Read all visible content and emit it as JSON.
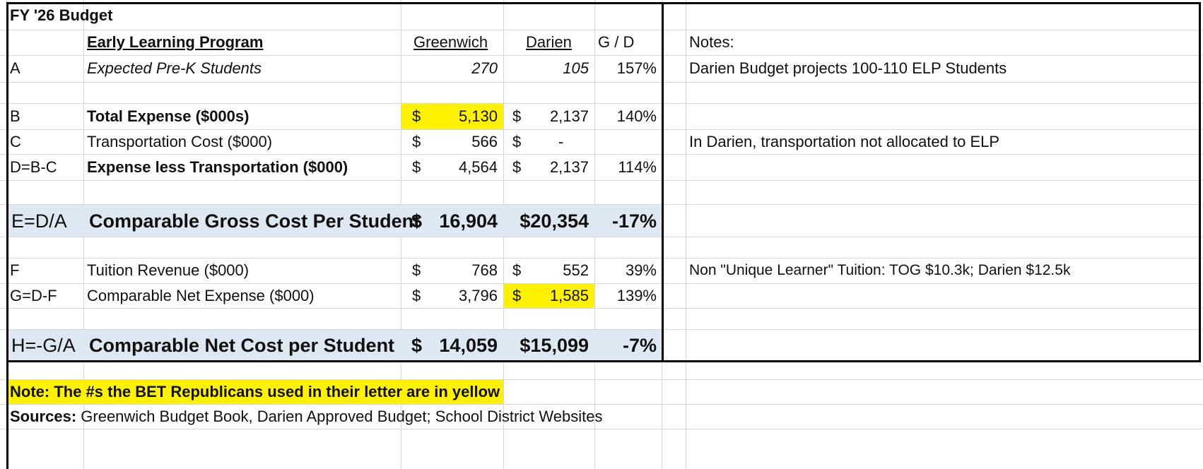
{
  "title": "FY '26 Budget",
  "header": {
    "program": "Early Learning Program",
    "greenwich": "Greenwich",
    "darien": "Darien",
    "ratio": "G / D",
    "notes": "Notes:"
  },
  "rows": {
    "a": {
      "code": "A",
      "label": "Expected Pre-K Students",
      "greenwich": "270",
      "darien": "105",
      "ratio": "157%",
      "note": "Darien Budget projects 100-110 ELP Students"
    },
    "b": {
      "code": "B",
      "label": "Total Expense ($000s)",
      "g_cur": "$",
      "greenwich": "5,130",
      "d_cur": "$",
      "darien": "2,137",
      "ratio": "140%"
    },
    "c": {
      "code": "C",
      "label": "Transportation Cost ($000)",
      "g_cur": "$",
      "greenwich": "566",
      "d_cur": "$",
      "darien": "-",
      "note": "In Darien, transportation not allocated to ELP"
    },
    "d": {
      "code": "D=B-C",
      "label": "Expense less Transportation ($000)",
      "g_cur": "$",
      "greenwich": "4,564",
      "d_cur": "$",
      "darien": "2,137",
      "ratio": "114%"
    },
    "e": {
      "code": "E=D/A",
      "label": "Comparable Gross Cost Per Student",
      "g_cur": "$",
      "greenwich": "16,904",
      "darien": "$20,354",
      "ratio": "-17%"
    },
    "f": {
      "code": "F",
      "label": "Tuition Revenue ($000)",
      "g_cur": "$",
      "greenwich": "768",
      "d_cur": "$",
      "darien": "552",
      "ratio": "39%",
      "note": "Non \"Unique Learner\" Tuition: TOG  $10.3k; Darien $12.5k"
    },
    "g": {
      "code": "G=D-F",
      "label": "Comparable Net Expense ($000)",
      "g_cur": "$",
      "greenwich": "3,796",
      "d_cur": "$",
      "darien": "1,585",
      "ratio": "139%"
    },
    "h": {
      "code": "H=-G/A",
      "label": "Comparable Net Cost per Student",
      "g_cur": "$",
      "greenwich": "14,059",
      "darien": "$15,099",
      "ratio": "-7%"
    }
  },
  "footer": {
    "note": "Note: The #s the BET Republicans used in their letter are in yellow",
    "sources_label": "Sources:",
    "sources_text": " Greenwich Budget Book, Darien Approved Budget; School District Websites"
  },
  "colors": {
    "highlight": "#fff200",
    "band": "#dde8f3",
    "border": "#000000",
    "grid": "#d6d6d6"
  }
}
